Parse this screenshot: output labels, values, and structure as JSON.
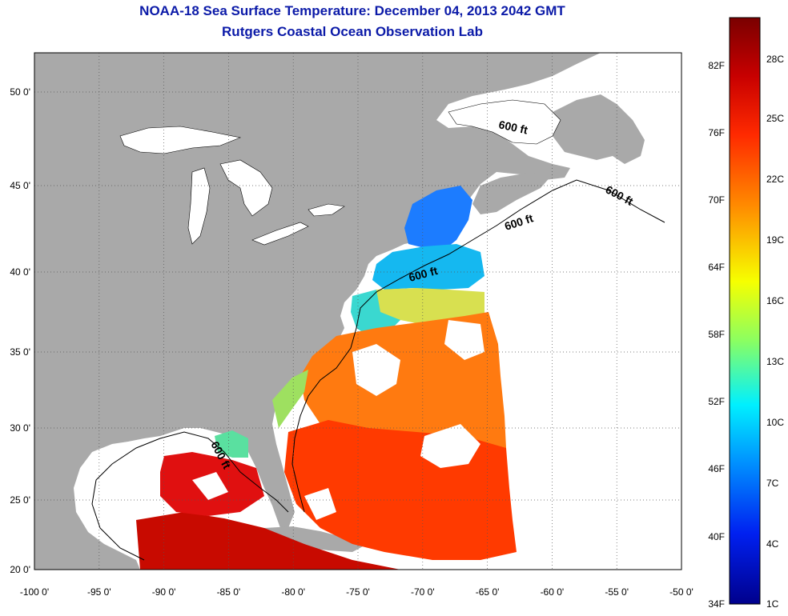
{
  "title": "NOAA-18 Sea Surface Temperature:  December 04, 2013 2042 GMT",
  "subtitle": "Rutgers Coastal Ocean Observation Lab",
  "lat_labels": [
    "50 0'",
    "45 0'",
    "40 0'",
    "35 0'",
    "30 0'",
    "25 0'",
    "20 0'"
  ],
  "lat_values": [
    50,
    45,
    40,
    35,
    30,
    25,
    20
  ],
  "lon_labels": [
    "-100 0'",
    "-95 0'",
    "-90 0'",
    "-85 0'",
    "-80 0'",
    "-75 0'",
    "-70 0'",
    "-65 0'",
    "-60 0'",
    "-55 0'",
    "-50 0'"
  ],
  "lon_values": [
    -100,
    -95,
    -90,
    -85,
    -80,
    -75,
    -70,
    -65,
    -60,
    -55,
    -50
  ],
  "depth_labels": [
    "600 ft",
    "600 ft",
    "600 ft",
    "600 ft",
    "600 ft"
  ],
  "colorbar": {
    "fahrenheit": [
      "82F",
      "76F",
      "70F",
      "64F",
      "58F",
      "52F",
      "46F",
      "40F",
      "34F"
    ],
    "celsius": [
      "28C",
      "25C",
      "22C",
      "19C",
      "16C",
      "13C",
      "10C",
      "7C",
      "4C",
      "1C"
    ],
    "colors": [
      "#7a0000",
      "#d40000",
      "#ff4a00",
      "#ffa000",
      "#f2ff00",
      "#74ff6a",
      "#00e8ff",
      "#0090ff",
      "#0028ff",
      "#00008c"
    ]
  },
  "colors": {
    "land": "#a9a9a9",
    "ocean": "#ffffff",
    "title": "#0b1aa8",
    "grid": "#444444"
  }
}
